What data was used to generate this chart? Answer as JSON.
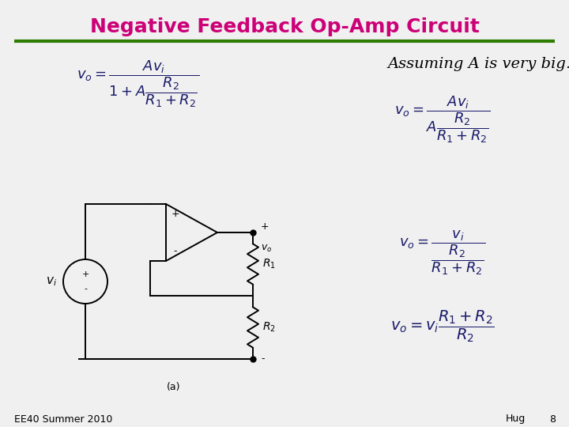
{
  "title": "Negative Feedback Op-Amp Circuit",
  "title_color": "#CC0077",
  "title_fontsize": 18,
  "separator_color": "#2E7D00",
  "separator_linewidth": 3,
  "bg_color": "#F0F0F0",
  "assuming_text": "Assuming A is very big…",
  "assuming_fontsize": 14,
  "footer_left": "EE40 Summer 2010",
  "footer_right": "Hug",
  "footer_page": "8",
  "footer_fontsize": 9,
  "eq_fontsize": 13,
  "eq_color": "#1a1a6a"
}
